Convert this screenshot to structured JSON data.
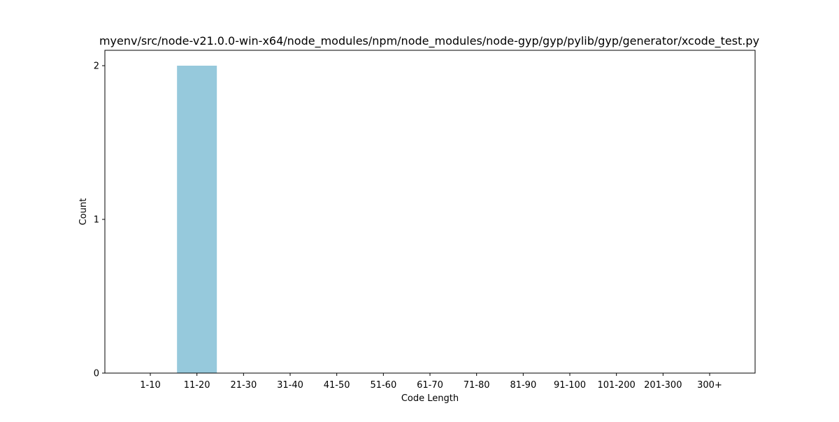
{
  "chart_data": {
    "type": "bar",
    "title": "myenv/src/node-v21.0.0-win-x64/node_modules/npm/node_modules/node-gyp/gyp/pylib/gyp/generator/xcode_test.py",
    "xlabel": "Code Length",
    "ylabel": "Count",
    "categories": [
      "1-10",
      "11-20",
      "21-30",
      "31-40",
      "41-50",
      "51-60",
      "61-70",
      "71-80",
      "81-90",
      "91-100",
      "101-200",
      "201-300",
      "300+"
    ],
    "values": [
      0,
      2,
      0,
      0,
      0,
      0,
      0,
      0,
      0,
      0,
      0,
      0,
      0
    ],
    "ylim": [
      0,
      2.1
    ],
    "yticks": [
      0,
      1,
      2
    ],
    "bar_color": "#96c9dc",
    "grid": false,
    "legend": "none"
  }
}
